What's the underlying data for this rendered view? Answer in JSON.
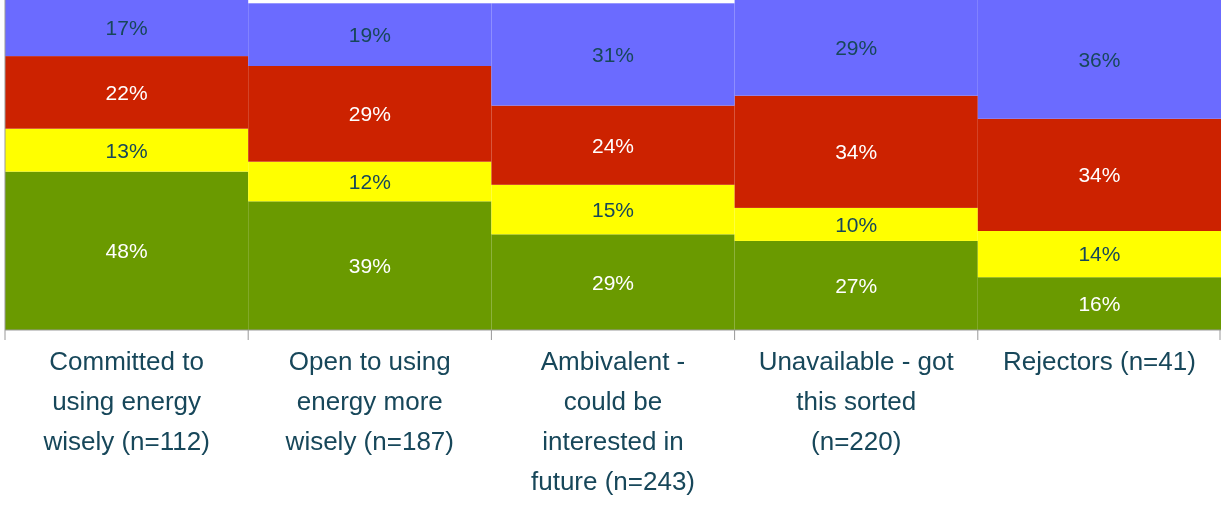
{
  "chart_data": {
    "type": "bar",
    "stacked": true,
    "tick_labels": "x",
    "ylim": [
      0,
      100
    ],
    "categories": [
      "Committed to using energy wisely (n=112)",
      "Open to using energy more wisely (n=187)",
      "Ambivalent - could be interested in future (n=243)",
      "Unavailable - got this sorted (n=220)",
      "Rejectors (n=41)"
    ],
    "series": [
      {
        "color": "#6a9a00",
        "values": [
          48,
          39,
          29,
          27,
          16
        ],
        "value_labels": [
          "48%",
          "39%",
          "29%",
          "27%",
          "16%"
        ]
      },
      {
        "color": "#ffff00",
        "values": [
          13,
          12,
          15,
          10,
          14
        ],
        "value_labels": [
          "13%",
          "12%",
          "15%",
          "10%",
          "14%"
        ]
      },
      {
        "color": "#cc2200",
        "values": [
          22,
          29,
          24,
          34,
          34
        ],
        "value_labels": [
          "22%",
          "29%",
          "24%",
          "34%",
          "34%"
        ]
      },
      {
        "color": "#6b6bff",
        "values": [
          17,
          19,
          31,
          29,
          36
        ],
        "value_labels": [
          "17%",
          "19%",
          "31%",
          "29%",
          "36%"
        ]
      }
    ]
  }
}
